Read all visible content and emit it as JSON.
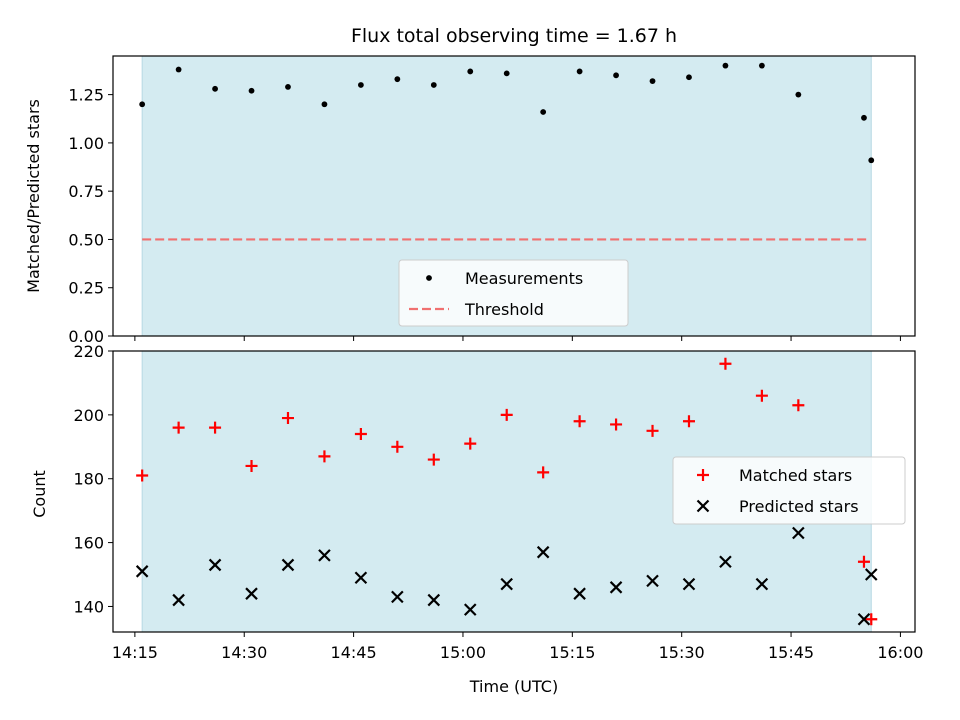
{
  "chart_data": [
    {
      "type": "scatter",
      "title": "Flux total observing time = 1.67 h",
      "xlabel": "",
      "ylabel": "Matched/Predicted stars",
      "ylim": [
        0,
        1.45
      ],
      "yticks": [
        "0.00",
        "0.25",
        "0.50",
        "0.75",
        "1.00",
        "1.25"
      ],
      "shaded_region": {
        "x_start": "14:16",
        "x_end": "15:56",
        "color": "#d4ebf1"
      },
      "threshold": {
        "name": "Threshold",
        "value": 0.5,
        "color": "#f07070",
        "style": "dashed"
      },
      "series": [
        {
          "name": "Measurements",
          "marker": "dot",
          "color": "#000000",
          "x": [
            "14:16",
            "14:21",
            "14:26",
            "14:31",
            "14:36",
            "14:41",
            "14:46",
            "14:51",
            "14:56",
            "15:01",
            "15:06",
            "15:11",
            "15:16",
            "15:21",
            "15:26",
            "15:31",
            "15:36",
            "15:41",
            "15:46",
            "15:55",
            "15:56"
          ],
          "y": [
            1.2,
            1.38,
            1.28,
            1.27,
            1.29,
            1.2,
            1.3,
            1.33,
            1.3,
            1.37,
            1.36,
            1.16,
            1.37,
            1.35,
            1.32,
            1.34,
            1.4,
            1.4,
            1.25,
            1.13,
            0.91
          ]
        }
      ],
      "legend": {
        "placement": "lower-center"
      }
    },
    {
      "type": "scatter",
      "title": "",
      "xlabel": "Time (UTC)",
      "ylabel": "Count",
      "ylim": [
        132,
        220
      ],
      "yticks": [
        "140",
        "160",
        "180",
        "200",
        "220"
      ],
      "xlim": [
        "14:12",
        "16:02"
      ],
      "xticks": [
        "14:15",
        "14:30",
        "14:45",
        "15:00",
        "15:15",
        "15:30",
        "15:45",
        "16:00"
      ],
      "shaded_region": {
        "x_start": "14:16",
        "x_end": "15:56",
        "color": "#d4ebf1"
      },
      "series": [
        {
          "name": "Matched stars",
          "marker": "plus",
          "color": "#ff0000",
          "x": [
            "14:16",
            "14:21",
            "14:26",
            "14:31",
            "14:36",
            "14:41",
            "14:46",
            "14:51",
            "14:56",
            "15:01",
            "15:06",
            "15:11",
            "15:16",
            "15:21",
            "15:26",
            "15:31",
            "15:36",
            "15:41",
            "15:46",
            "15:55",
            "15:56"
          ],
          "y": [
            181,
            196,
            196,
            184,
            199,
            187,
            194,
            190,
            186,
            191,
            200,
            182,
            198,
            197,
            195,
            198,
            216,
            206,
            203,
            154,
            136
          ]
        },
        {
          "name": "Predicted stars",
          "marker": "x",
          "color": "#000000",
          "x": [
            "14:16",
            "14:21",
            "14:26",
            "14:31",
            "14:36",
            "14:41",
            "14:46",
            "14:51",
            "14:56",
            "15:01",
            "15:06",
            "15:11",
            "15:16",
            "15:21",
            "15:26",
            "15:31",
            "15:36",
            "15:41",
            "15:46",
            "15:55",
            "15:56"
          ],
          "y": [
            151,
            142,
            153,
            144,
            153,
            156,
            149,
            143,
            142,
            139,
            147,
            157,
            144,
            146,
            148,
            147,
            154,
            147,
            163,
            136,
            150
          ]
        }
      ],
      "legend": {
        "placement": "center-right"
      }
    }
  ]
}
